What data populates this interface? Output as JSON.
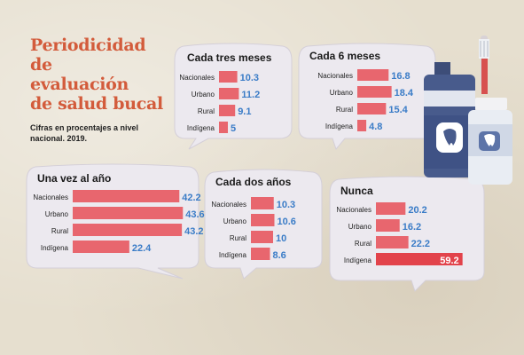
{
  "header": {
    "title": "Periodicidad de\nevaluación\nde salud bucal",
    "subtitle": "Cifras en procentajes a nivel\nnacional. 2019."
  },
  "colors": {
    "bar_normal": "#e8666e",
    "bar_highlight": "#e2434b",
    "value_text": "#3a7cc7",
    "bubble_fill": "#ece9ef",
    "title": "#d35b3b"
  },
  "illustration": {
    "icons": [
      "mouthwash-bottle-icon",
      "toothbrush-icon",
      "tooth-icon"
    ]
  },
  "chart_data": [
    {
      "type": "bar",
      "title": "Cada tres meses",
      "categories": [
        "Nacionales",
        "Urbano",
        "Rural",
        "Indígena"
      ],
      "values": [
        10.3,
        11.2,
        9.1,
        5
      ],
      "value_labels": [
        "10.3",
        "11.2",
        "9.1",
        "5"
      ]
    },
    {
      "type": "bar",
      "title": "Cada 6 meses",
      "categories": [
        "Nacionales",
        "Urbano",
        "Rural",
        "Indígena"
      ],
      "values": [
        16.8,
        18.4,
        15.4,
        4.8
      ],
      "value_labels": [
        "16.8",
        "18.4",
        "15.4",
        "4.8"
      ]
    },
    {
      "type": "bar",
      "title": "Una vez al año",
      "categories": [
        "Nacionales",
        "Urbano",
        "Rural",
        "Indígena"
      ],
      "values": [
        42.2,
        43.6,
        43.2,
        22.4
      ],
      "value_labels": [
        "42.2",
        "43.6",
        "43.2",
        "22.4"
      ]
    },
    {
      "type": "bar",
      "title": "Cada dos años",
      "categories": [
        "Nacionales",
        "Urbano",
        "Rural",
        "Indígena"
      ],
      "values": [
        10.3,
        10.6,
        10,
        8.6
      ],
      "value_labels": [
        "10.3",
        "10.6",
        "10",
        "8.6"
      ]
    },
    {
      "type": "bar",
      "title": "Nunca",
      "categories": [
        "Nacionales",
        "Urbano",
        "Rural",
        "Indígena"
      ],
      "values": [
        20.2,
        16.2,
        22.2,
        59.2
      ],
      "value_labels": [
        "20.2",
        "16.2",
        "22.2",
        "59.2"
      ],
      "highlight_index": 3
    }
  ]
}
